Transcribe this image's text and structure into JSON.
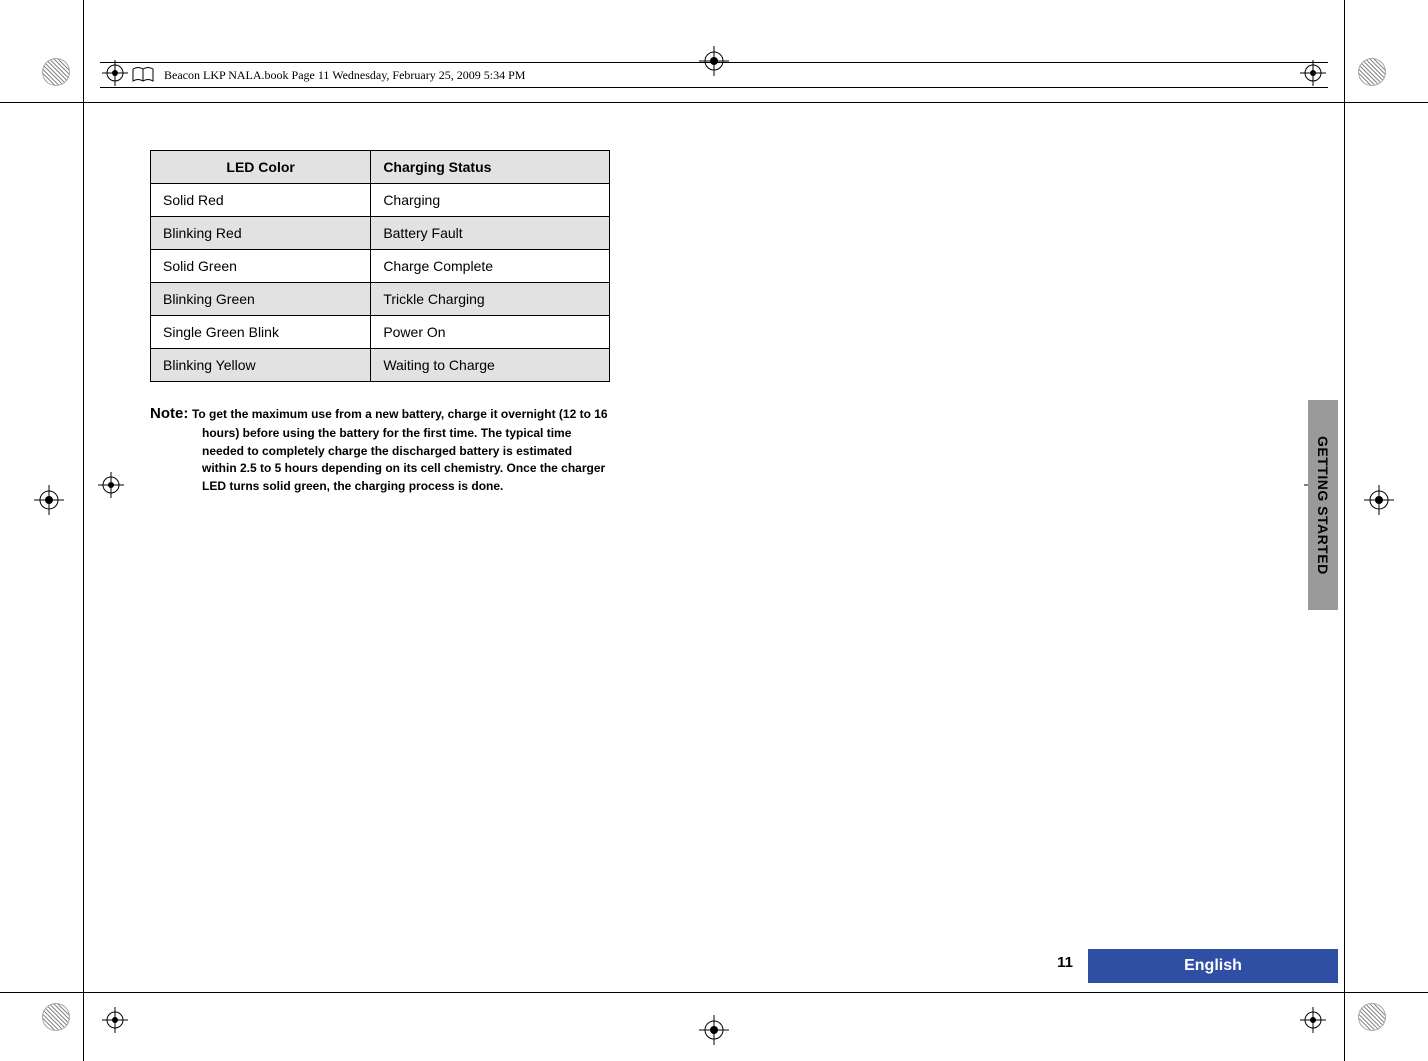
{
  "header": {
    "text": "Beacon LKP NALA.book  Page 11  Wednesday, February 25, 2009  5:34 PM"
  },
  "table": {
    "headers": {
      "col1": "LED Color",
      "col2": "Charging Status"
    },
    "rows": [
      {
        "c1": "Solid Red",
        "c2": "Charging",
        "shade": false
      },
      {
        "c1": "Blinking Red",
        "c2": "Battery Fault",
        "shade": true
      },
      {
        "c1": "Solid Green",
        "c2": "Charge Complete",
        "shade": false
      },
      {
        "c1": "Blinking Green",
        "c2": "Trickle Charging",
        "shade": true
      },
      {
        "c1": "Single Green Blink",
        "c2": "Power On",
        "shade": false
      },
      {
        "c1": "Blinking Yellow",
        "c2": "Waiting to Charge",
        "shade": true
      }
    ]
  },
  "note": {
    "label": "Note:",
    "body": "To get the maximum use from a new battery, charge it overnight (12 to 16 hours) before using the battery for the first time. The typical time needed to completely charge the discharged battery is estimated within 2.5 to 5 hours depending on its cell chemistry. Once the charger LED turns solid green, the charging process is done."
  },
  "side_tab": "GETTING STARTED",
  "page_number": "11",
  "language": "English",
  "colors": {
    "shade": "#e2e2e2",
    "tab_bg": "#9a9a9a",
    "lang_bg": "#2e4fa3",
    "lang_fg": "#ffffff",
    "text": "#000000"
  }
}
